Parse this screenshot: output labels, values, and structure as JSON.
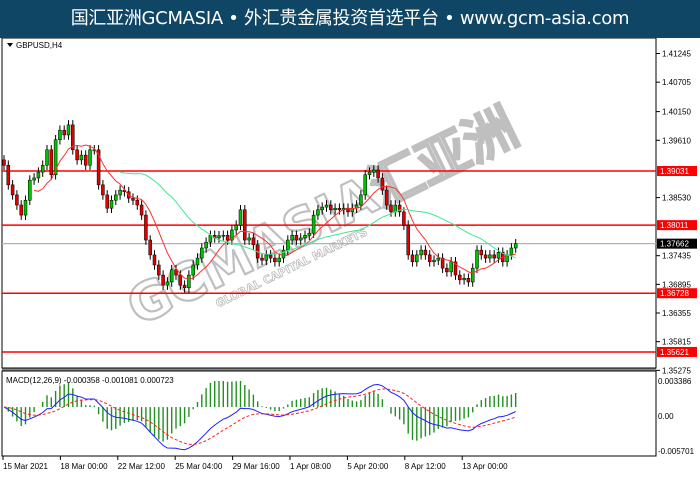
{
  "banner": {
    "text": "国汇亚洲GCMASIA • 外汇贵金属投资首选平台 • www.gcm-asia.com"
  },
  "watermark": {
    "logo_text": "GCMASIA汇亚洲",
    "sub_text": "GLOBAL CAPITAL MARKETS"
  },
  "colors": {
    "banner": "#0f4565",
    "bull": "#00c000",
    "bear": "#e00000",
    "level": "#ff0000",
    "current": "#a9b4bd",
    "ma_fast": "#ff3030",
    "ma_slow": "#40e890",
    "macd_line": "#2020ff",
    "signal_line": "#ff2020",
    "histogram": "#209020"
  },
  "chart_data": {
    "type": "candlestick",
    "symbol_label": "GBPUSD,H4",
    "ylim": [
      1.3515,
      1.415
    ],
    "y_ticks": [
      "1.41245",
      "1.40705",
      "1.40150",
      "1.39610",
      "1.38530",
      "1.37435",
      "1.36895",
      "1.36355",
      "1.35815",
      "1.35275"
    ],
    "x_ticks": [
      "15 Mar 2021",
      "18 Mar 00:00",
      "22 Mar 12:00",
      "25 Mar 04:00",
      "29 Mar 16:00",
      "1 Apr 08:00",
      "5 Apr 20:00",
      "8 Apr 12:00",
      "13 Apr 00:00"
    ],
    "levels": [
      {
        "value": 1.39031,
        "label": "1.39031"
      },
      {
        "value": 1.38011,
        "label": "1.38011"
      },
      {
        "value": 1.36728,
        "label": "1.36728"
      },
      {
        "value": 1.35621,
        "label": "1.35621"
      }
    ],
    "current_price": {
      "value": 1.37662,
      "label": "1.37662"
    },
    "close": [
      1.3914,
      1.3877,
      1.3858,
      1.3839,
      1.382,
      1.3848,
      1.3886,
      1.389,
      1.3901,
      1.3914,
      1.3943,
      1.3896,
      1.3962,
      1.398,
      1.3971,
      1.399,
      1.3943,
      1.3924,
      1.3933,
      1.3914,
      1.3943,
      1.3943,
      1.3877,
      1.3858,
      1.3833,
      1.3848,
      1.3858,
      1.3867,
      1.3864,
      1.3852,
      1.3848,
      1.3839,
      1.382,
      1.3773,
      1.3745,
      1.3726,
      1.3707,
      1.3688,
      1.3694,
      1.3717,
      1.3707,
      1.3688,
      1.3683,
      1.3707,
      1.3726,
      1.3739,
      1.3758,
      1.3769,
      1.3782,
      1.3777,
      1.3781,
      1.3782,
      1.3773,
      1.3792,
      1.3801,
      1.383,
      1.3773,
      1.3777,
      1.3764,
      1.3739,
      1.3735,
      1.3745,
      1.3739,
      1.3732,
      1.3739,
      1.3754,
      1.3773,
      1.3782,
      1.3773,
      1.3777,
      1.3782,
      1.3786,
      1.382,
      1.383,
      1.3835,
      1.3839,
      1.383,
      1.3833,
      1.383,
      1.3833,
      1.3826,
      1.3833,
      1.3839,
      1.3858,
      1.3896,
      1.3901,
      1.3905,
      1.389,
      1.3867,
      1.3839,
      1.3826,
      1.3839,
      1.3826,
      1.3801,
      1.3745,
      1.3732,
      1.3745,
      1.3754,
      1.3745,
      1.3732,
      1.3735,
      1.3739,
      1.372,
      1.3713,
      1.3732,
      1.3707,
      1.3698,
      1.3701,
      1.3694,
      1.372,
      1.3754,
      1.3745,
      1.3739,
      1.3745,
      1.3739,
      1.375,
      1.3732,
      1.3745,
      1.3758,
      1.3766
    ],
    "indicators": {
      "ma_fast": "red moving average",
      "ma_slow": "green moving average",
      "macd": {
        "label": "MACD(12,26,9) -0.000358 -0.001081 0.000723",
        "ylim": [
          -0.005701,
          0.003386
        ],
        "y_ticks": [
          "0.003386",
          "0.00",
          "-0.005701"
        ]
      }
    }
  }
}
